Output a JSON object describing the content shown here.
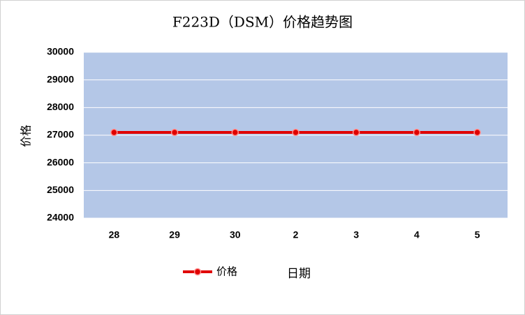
{
  "chart_data": {
    "type": "line",
    "title": "F223D（DSM）价格趋势图",
    "x_label": "日期",
    "y_label": "价格",
    "categories": [
      "28",
      "29",
      "30",
      "2",
      "3",
      "4",
      "5"
    ],
    "series": [
      {
        "name": "价格",
        "color": "#e00000",
        "values": [
          27100,
          27100,
          27100,
          27100,
          27100,
          27100,
          27100
        ]
      }
    ],
    "ylim": [
      24000,
      30000
    ],
    "yticks": [
      24000,
      25000,
      26000,
      27000,
      28000,
      29000,
      30000
    ],
    "grid": true,
    "legend": "bottom"
  }
}
